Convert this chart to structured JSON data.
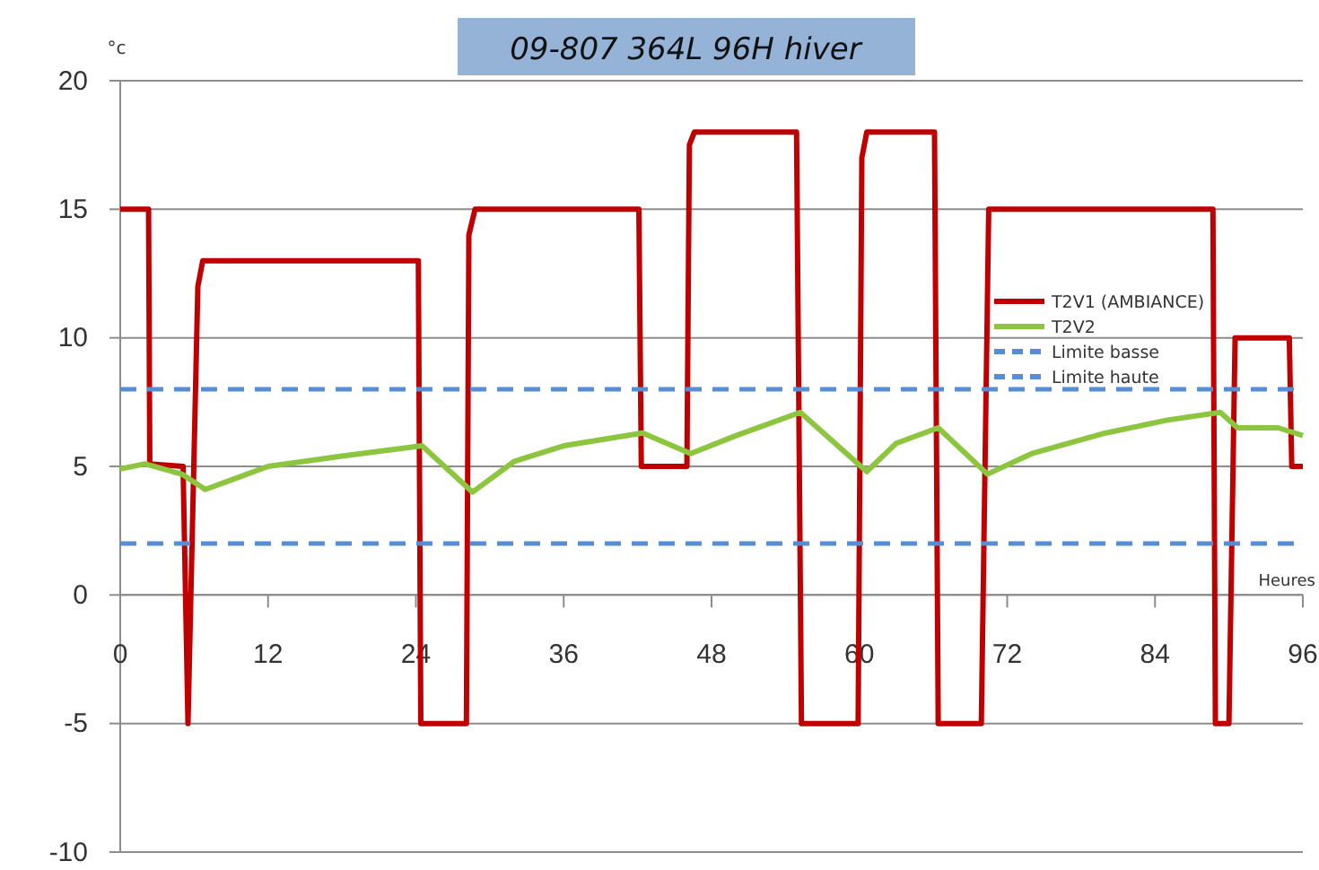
{
  "chart_data": {
    "type": "line",
    "title": "09-807 364L 96H hiver",
    "ylabel": "°c",
    "xlabel": "Heures",
    "xlim": [
      0,
      96
    ],
    "xticks": [
      0,
      12,
      24,
      36,
      48,
      60,
      72,
      84,
      96
    ],
    "ylim": [
      -10,
      20
    ],
    "yticks": [
      -10,
      -5,
      0,
      5,
      10,
      15,
      20
    ],
    "grid": "y",
    "legend": "right",
    "marker": "none",
    "series": [
      {
        "name": "T2V1 (AMBIANCE)",
        "color": "#c00000",
        "x": [
          0,
          2.3,
          2.4,
          5.1,
          5.5,
          6.3,
          6.7,
          24.2,
          24.4,
          28.1,
          28.3,
          28.8,
          42.1,
          42.3,
          46,
          46.2,
          46.6,
          54.9,
          55.3,
          59.9,
          60.2,
          60.6,
          66.1,
          66.4,
          69.9,
          70.5,
          88.7,
          88.9,
          90,
          90.5,
          94.9,
          95.1,
          96
        ],
        "values": [
          15,
          15,
          5.1,
          5,
          -5,
          12,
          13,
          13,
          -5,
          -5,
          14,
          15,
          15,
          5,
          5,
          17.5,
          18,
          18,
          -5,
          -5,
          17,
          18,
          18,
          -5,
          -5,
          15,
          15,
          -5,
          -5,
          10,
          10,
          5,
          5
        ]
      },
      {
        "name": "T2V2",
        "color": "#8cc63f",
        "x": [
          0,
          2,
          5,
          6.9,
          12,
          18,
          24.5,
          28.6,
          32,
          36,
          42.4,
          46.3,
          50,
          55.2,
          60.6,
          63,
          66.4,
          70.4,
          74,
          80,
          85,
          89.3,
          90.7,
          94,
          96
        ],
        "values": [
          4.9,
          5.1,
          4.7,
          4.1,
          5,
          5.4,
          5.8,
          4,
          5.2,
          5.8,
          6.3,
          5.5,
          6.2,
          7.1,
          4.8,
          5.9,
          6.5,
          4.7,
          5.5,
          6.3,
          6.8,
          7.1,
          6.5,
          6.5,
          6.2
        ]
      },
      {
        "name": "Limite basse",
        "color": "#558ed5",
        "line_style": "dashed",
        "x": [
          0,
          96
        ],
        "values": [
          8,
          8
        ]
      },
      {
        "name": "Limite haute",
        "color": "#558ed5",
        "line_style": "dashed",
        "x": [
          0,
          96
        ],
        "values": [
          2,
          2
        ]
      }
    ]
  }
}
